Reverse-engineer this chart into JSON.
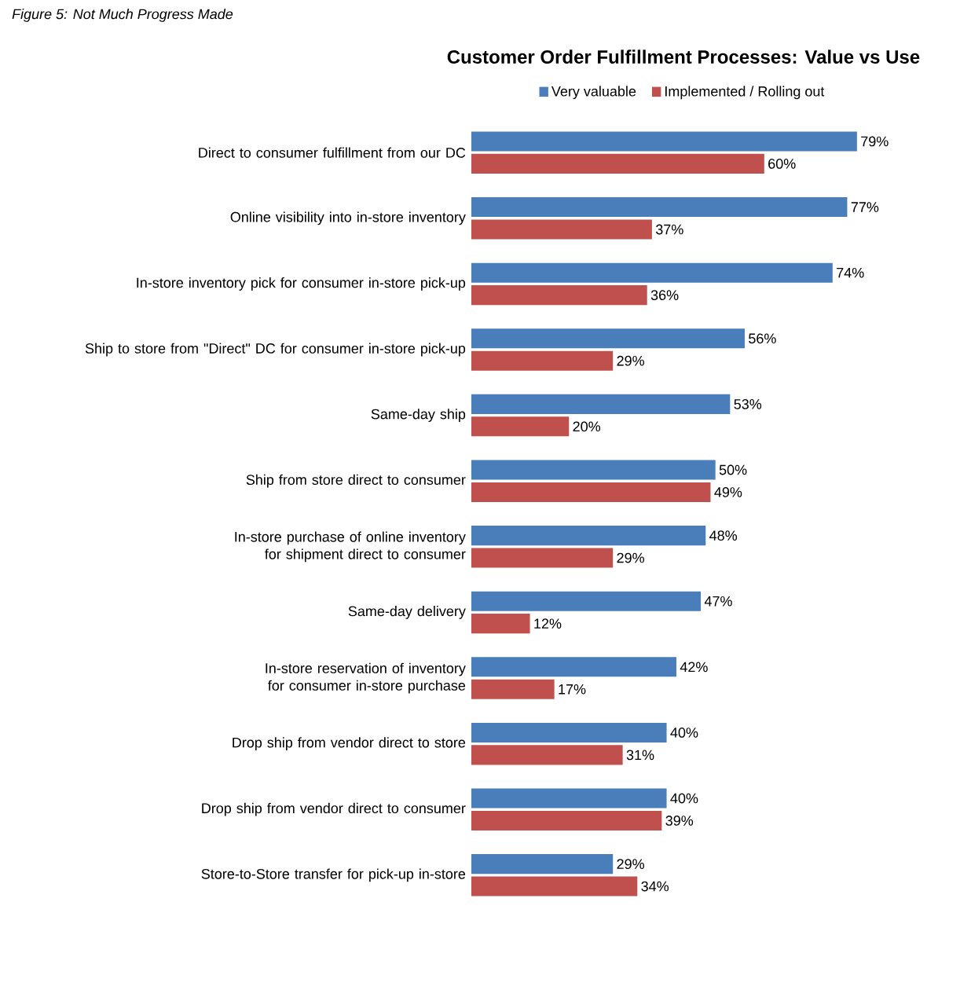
{
  "chart_data": {
    "type": "bar",
    "orientation": "horizontal",
    "title": "Customer Order Fulfillment Processes: Value vs Use",
    "annotations": [
      "Figure 5: Not Much Progress Made"
    ],
    "categories": [
      "Direct to consumer fulfillment from our DC",
      "Online visibility into in-store inventory",
      "In-store inventory pick for consumer in-store pick-up",
      "Ship to store from \"Direct\" DC for consumer in-store pick-up",
      "Same-day ship",
      "Ship from store direct to consumer",
      "In-store purchase of online inventory for shipment direct to consumer",
      "Same-day delivery",
      "In-store reservation of inventory for consumer in-store purchase",
      "Drop ship from vendor direct to store",
      "Drop ship from vendor direct to consumer",
      "Store-to-Store transfer for pick-up in-store"
    ],
    "series": [
      {
        "name": "Very valuable",
        "color": "#4a7ebb",
        "values": [
          79,
          77,
          74,
          56,
          53,
          50,
          48,
          47,
          42,
          40,
          40,
          29
        ],
        "value_labels": [
          "79%",
          "77%",
          "74%",
          "56%",
          "53%",
          "50%",
          "48%",
          "47%",
          "42%",
          "40%",
          "40%",
          "29%"
        ]
      },
      {
        "name": "Implemented / Rolling out",
        "color": "#c0504d",
        "values": [
          60,
          37,
          36,
          29,
          20,
          49,
          29,
          12,
          17,
          31,
          39,
          34
        ],
        "value_labels": [
          "60%",
          "37%",
          "36%",
          "29%",
          "20%",
          "49%",
          "29%",
          "12%",
          "17%",
          "31%",
          "39%",
          "34%"
        ]
      }
    ],
    "legend": "top"
  }
}
